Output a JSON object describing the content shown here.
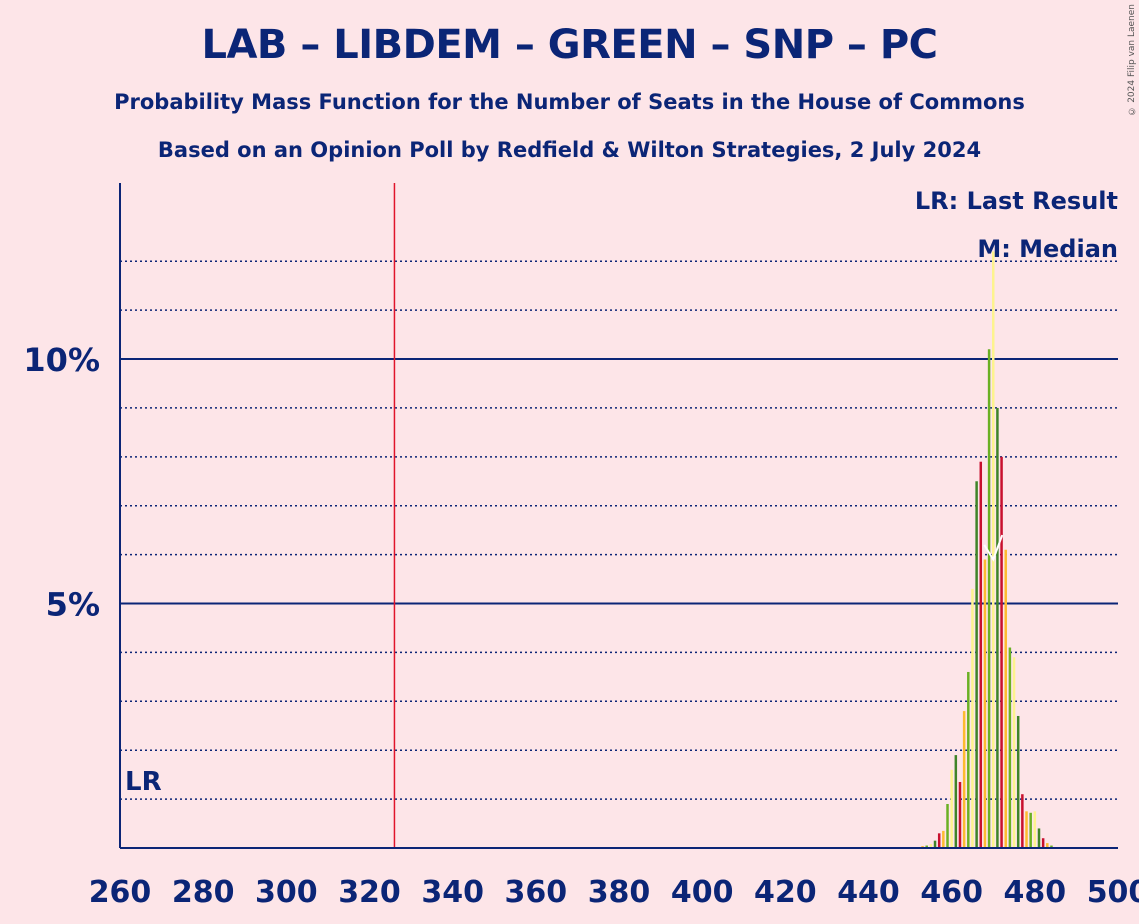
{
  "title": "LAB – LIBDEM – GREEN – SNP – PC",
  "subtitle": "Probability Mass Function for the Number of Seats in the House of Commons",
  "source": "Based on an Opinion Poll by Redfield & Wilton Strategies, 2 July 2024",
  "copyright": "© 2024 Filip van Laenen",
  "legend": {
    "last_result": "LR: Last Result",
    "median": "M: Median",
    "lr_marker": "LR",
    "median_marker": "M"
  },
  "colors": {
    "background": "#fde5e8",
    "axis": "#0b2576",
    "last_result_line": "#e0142b",
    "bars": [
      "#c8102e",
      "#fdbb30",
      "#6ab023",
      "#fdf38e",
      "#3f8428"
    ]
  },
  "chart_data": {
    "type": "bar",
    "xlabel": "",
    "ylabel": "",
    "xlim": [
      260,
      500
    ],
    "ylim": [
      0,
      13.6
    ],
    "x_ticks": [
      260,
      280,
      300,
      320,
      340,
      360,
      380,
      400,
      420,
      440,
      460,
      480,
      500
    ],
    "y_ticks": [
      {
        "value": 5,
        "label": "5%"
      },
      {
        "value": 10,
        "label": "10%"
      }
    ],
    "minor_gridlines": [
      1,
      2,
      3,
      4,
      6,
      7,
      8,
      9,
      11,
      12
    ],
    "last_result": 326,
    "median": 470,
    "series": [
      {
        "x": [
          452,
          453,
          454,
          455,
          456,
          457,
          458,
          459,
          460,
          461,
          462,
          463,
          464,
          465,
          466,
          467,
          468,
          469,
          470,
          471,
          472,
          473,
          474,
          475,
          476,
          477,
          478,
          479,
          480,
          481,
          482,
          483,
          484,
          485
        ],
        "values": [
          0.02,
          0.04,
          0.05,
          0.08,
          0.15,
          0.3,
          0.35,
          0.9,
          1.6,
          1.9,
          1.35,
          2.8,
          3.6,
          5.3,
          7.5,
          7.9,
          5.9,
          10.2,
          12.2,
          9.0,
          8.0,
          6.1,
          4.1,
          3.9,
          2.7,
          1.1,
          0.75,
          0.72,
          0.75,
          0.4,
          0.2,
          0.1,
          0.05,
          0.02
        ]
      }
    ]
  }
}
